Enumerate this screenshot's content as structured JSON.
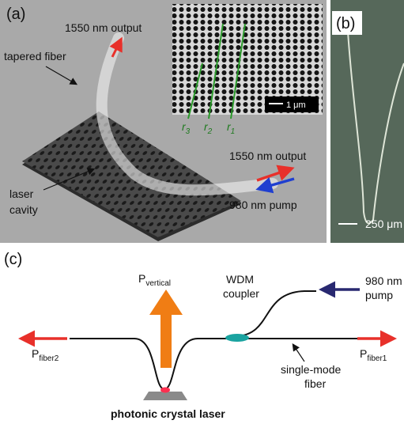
{
  "panel_a": {
    "label": "(a)",
    "top_output": "1550 nm output",
    "fiber": "tapered fiber",
    "cavity": [
      "laser",
      "cavity"
    ],
    "side_output": "1550 nm output",
    "pump": "980 nm pump",
    "scale_bar": "1 μm",
    "radii": [
      {
        "base": "r",
        "sub": "3"
      },
      {
        "base": "r",
        "sub": "2"
      },
      {
        "base": "r",
        "sub": "1"
      }
    ]
  },
  "panel_b": {
    "label": "(b)",
    "scale_bar": "250 μm"
  },
  "panel_c": {
    "label": "(c)",
    "p_vertical": {
      "base": "P",
      "sub": "vertical"
    },
    "coupler": [
      "WDM",
      "coupler"
    ],
    "pump": [
      "980 nm",
      "pump"
    ],
    "p_fiber2": {
      "base": "P",
      "sub": "fiber2"
    },
    "p_fiber1": {
      "base": "P",
      "sub": "fiber1"
    },
    "fiber": [
      "single-mode",
      "fiber"
    ],
    "laser": "photonic crystal laser"
  }
}
